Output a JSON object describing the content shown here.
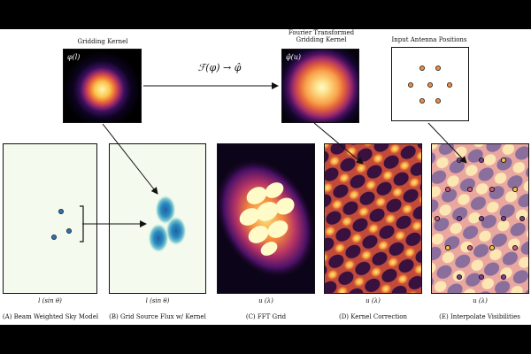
{
  "top": {
    "gridding_kernel_title": "Gridding Kernel",
    "phi_label": "φ(l)",
    "ft_title_line1": "Fourier Transformed",
    "ft_title_line2": "Gridding Kernel",
    "phi_hat_label": "φ̂(u)",
    "transform_label": "ℱ(φ) → φ̂",
    "antenna_title": "Input Antenna Positions"
  },
  "axes": {
    "a": "l (sin θ)",
    "b": "l (sin θ)",
    "c": "u (λ)",
    "d": "u (λ)",
    "e": "u (λ)"
  },
  "captions": {
    "a": "(A) Beam Weighted Sky Model",
    "b": "(B) Grid Source Flux w/ Kernel",
    "c": "(C) FFT Grid",
    "d": "(D) Kernel Correction",
    "e": "(E) Interpolate Visibilities"
  },
  "colors": {
    "sky_bg": "#f4fbee",
    "source_blue": "#2b74b8",
    "inferno_dark": "#1b0a3a",
    "inferno_mid": "#c73a4f",
    "inferno_bright": "#fcf0a0",
    "antenna_orange": "#f08a3c"
  }
}
